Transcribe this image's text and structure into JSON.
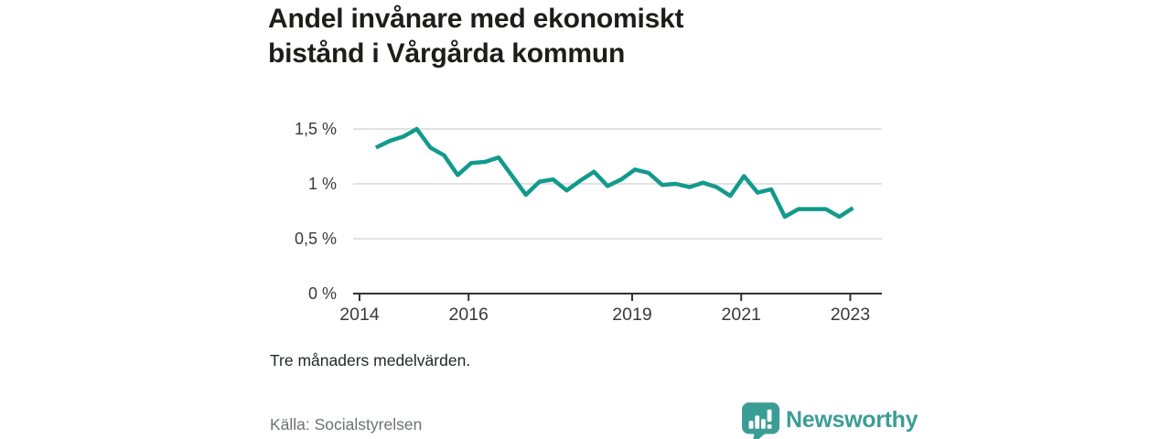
{
  "header": {
    "title_line1": "Andel invånare med ekonomiskt",
    "title_line2": "bistånd i Vårgårda kommun"
  },
  "note": "Tre månaders medelvärden.",
  "source": "Källa: Socialstyrelsen",
  "logo": {
    "text": "Newsworthy"
  },
  "colors": {
    "line": "#129a8c",
    "grid": "#d9d9d9",
    "axis": "#333333",
    "tick_label": "#3a3a3a",
    "title": "#1d1d1b",
    "muted": "#6e7177",
    "logo_teal": "#3b9e96"
  },
  "chart_data": {
    "type": "line",
    "title": "Andel invånare med ekonomiskt bistånd i Vårgårda kommun",
    "subtitle": "Tre månaders medelvärden.",
    "source": "Källa: Socialstyrelsen",
    "unit": "%",
    "series_name": "Andel invånare med ekonomiskt bistånd",
    "x_unit": "decimal-year (kvartalsvisa punkter)",
    "x": [
      2014.3,
      2014.55,
      2014.8,
      2015.05,
      2015.3,
      2015.55,
      2015.8,
      2016.05,
      2016.3,
      2016.55,
      2016.8,
      2017.05,
      2017.3,
      2017.55,
      2017.8,
      2018.05,
      2018.3,
      2018.55,
      2018.8,
      2019.05,
      2019.3,
      2019.55,
      2019.8,
      2020.05,
      2020.3,
      2020.55,
      2020.8,
      2021.05,
      2021.3,
      2021.55,
      2021.8,
      2022.05,
      2022.3,
      2022.55,
      2022.8,
      2023.05
    ],
    "values": [
      1.33,
      1.39,
      1.43,
      1.5,
      1.33,
      1.26,
      1.08,
      1.19,
      1.2,
      1.24,
      1.07,
      0.9,
      1.02,
      1.04,
      0.94,
      1.03,
      1.11,
      0.98,
      1.04,
      1.13,
      1.1,
      0.99,
      1.0,
      0.97,
      1.01,
      0.97,
      0.89,
      1.07,
      0.92,
      0.95,
      0.7,
      0.77,
      0.77,
      0.77,
      0.7,
      0.78
    ],
    "x_ticks": [
      2014,
      2016,
      2019,
      2021,
      2023
    ],
    "y_ticks": [
      0,
      0.5,
      1,
      1.5
    ],
    "y_tick_labels": [
      "0 %",
      "0,5 %",
      "1 %",
      "1,5 %"
    ],
    "ylim": [
      0,
      1.5
    ],
    "xlim": [
      2014,
      2023.6
    ],
    "grid": "horizontal-only",
    "legend": "none"
  }
}
